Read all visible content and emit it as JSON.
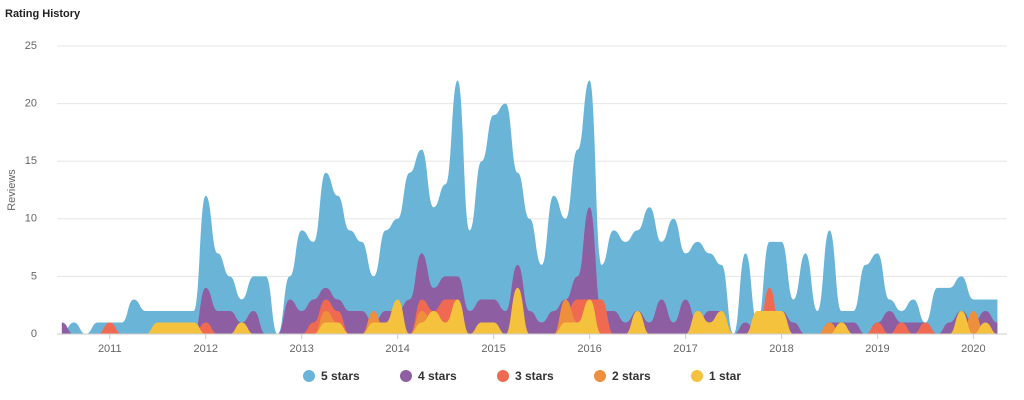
{
  "chart_data": {
    "type": "area",
    "title": "Rating History",
    "y_label": "Reviews",
    "x": [
      2010.5,
      2010.625,
      2010.75,
      2010.875,
      2011,
      2011.125,
      2011.25,
      2011.375,
      2011.5,
      2011.625,
      2011.75,
      2011.875,
      2012,
      2012.125,
      2012.25,
      2012.375,
      2012.5,
      2012.625,
      2012.75,
      2012.875,
      2013,
      2013.125,
      2013.25,
      2013.375,
      2013.5,
      2013.625,
      2013.75,
      2013.875,
      2014,
      2014.125,
      2014.25,
      2014.375,
      2014.5,
      2014.625,
      2014.75,
      2014.875,
      2015,
      2015.125,
      2015.25,
      2015.375,
      2015.5,
      2015.625,
      2015.75,
      2015.875,
      2016,
      2016.125,
      2016.25,
      2016.375,
      2016.5,
      2016.625,
      2016.75,
      2016.875,
      2017,
      2017.125,
      2017.25,
      2017.375,
      2017.5,
      2017.625,
      2017.75,
      2017.875,
      2018,
      2018.125,
      2018.25,
      2018.375,
      2018.5,
      2018.625,
      2018.75,
      2018.875,
      2019,
      2019.125,
      2019.25,
      2019.375,
      2019.5,
      2019.625,
      2019.75,
      2019.875,
      2020,
      2020.125,
      2020.25
    ],
    "series": [
      {
        "name": "5 stars",
        "color": "#6ab4d8",
        "values": [
          0,
          1,
          0,
          1,
          1,
          1,
          3,
          2,
          2,
          2,
          2,
          2,
          12,
          7,
          5,
          3,
          5,
          5,
          0,
          5,
          9,
          8,
          14,
          12,
          9,
          8,
          5,
          9,
          10,
          14,
          16,
          11,
          13,
          22,
          9,
          15,
          19,
          20,
          14,
          10,
          6,
          12,
          10,
          16,
          22,
          6,
          9,
          8,
          9,
          11,
          8,
          10,
          7,
          8,
          7,
          6,
          0,
          7,
          1,
          8,
          8,
          3,
          7,
          2,
          9,
          2,
          2,
          6,
          7,
          3,
          2,
          3,
          1,
          4,
          4,
          5,
          3,
          3,
          3
        ]
      },
      {
        "name": "4 stars",
        "color": "#8e5ea2",
        "values": [
          1,
          0,
          0,
          0,
          0,
          0,
          0,
          0,
          0,
          1,
          1,
          0,
          4,
          2,
          2,
          1,
          2,
          0,
          0,
          3,
          2,
          3,
          4,
          3,
          2,
          2,
          1,
          2,
          2,
          3,
          7,
          4,
          5,
          5,
          2,
          3,
          3,
          2,
          6,
          2,
          1,
          2,
          3,
          5,
          11,
          2,
          2,
          1,
          2,
          1,
          3,
          1,
          3,
          1,
          2,
          2,
          0,
          1,
          0,
          2,
          2,
          1,
          0,
          0,
          1,
          1,
          1,
          0,
          1,
          2,
          1,
          1,
          1,
          0,
          1,
          2,
          1,
          2,
          1
        ]
      },
      {
        "name": "3 stars",
        "color": "#ef6a50",
        "values": [
          0,
          0,
          0,
          0,
          1,
          0,
          0,
          0,
          0,
          0,
          0,
          0,
          1,
          0,
          0,
          0,
          0,
          0,
          0,
          0,
          0,
          1,
          3,
          2,
          0,
          0,
          2,
          0,
          2,
          0,
          3,
          2,
          3,
          3,
          0,
          0,
          0,
          0,
          4,
          0,
          0,
          0,
          2,
          3,
          3,
          3,
          0,
          0,
          0,
          0,
          0,
          0,
          0,
          0,
          0,
          0,
          0,
          0,
          0,
          4,
          0,
          0,
          0,
          0,
          0,
          0,
          0,
          0,
          1,
          0,
          1,
          0,
          1,
          0,
          0,
          2,
          0,
          0,
          0
        ]
      },
      {
        "name": "2 stars",
        "color": "#ee8f3e",
        "values": [
          0,
          0,
          0,
          0,
          0,
          0,
          0,
          0,
          0,
          1,
          0,
          0,
          0,
          0,
          0,
          1,
          0,
          0,
          0,
          0,
          0,
          0,
          2,
          1,
          0,
          0,
          2,
          0,
          0,
          0,
          2,
          1,
          0,
          2,
          0,
          1,
          0,
          0,
          4,
          0,
          0,
          0,
          3,
          1,
          3,
          0,
          0,
          0,
          2,
          0,
          0,
          0,
          0,
          0,
          0,
          0,
          0,
          0,
          2,
          2,
          0,
          0,
          0,
          0,
          1,
          0,
          0,
          0,
          0,
          0,
          0,
          0,
          0,
          0,
          0,
          0,
          2,
          0,
          0
        ]
      },
      {
        "name": "1 star",
        "color": "#f5c23d",
        "values": [
          0,
          0,
          0,
          0,
          0,
          0,
          0,
          0,
          1,
          1,
          1,
          1,
          0,
          0,
          0,
          1,
          0,
          0,
          0,
          0,
          0,
          0,
          1,
          1,
          0,
          0,
          1,
          1,
          3,
          0,
          1,
          2,
          1,
          3,
          0,
          1,
          1,
          0,
          4,
          0,
          0,
          0,
          1,
          1,
          3,
          0,
          0,
          0,
          2,
          0,
          0,
          0,
          0,
          2,
          1,
          2,
          0,
          0,
          2,
          2,
          2,
          0,
          0,
          0,
          0,
          1,
          0,
          0,
          0,
          0,
          0,
          0,
          0,
          0,
          0,
          2,
          0,
          1,
          0
        ]
      }
    ],
    "xlim": [
      2010.45,
      2020.35
    ],
    "xticks": [
      2011,
      2012,
      2013,
      2014,
      2015,
      2016,
      2017,
      2018,
      2019,
      2020
    ],
    "ylim": [
      0,
      25
    ],
    "yticks": [
      0,
      5,
      10,
      15,
      20,
      25
    ],
    "grid": true,
    "legend": "bottom"
  }
}
